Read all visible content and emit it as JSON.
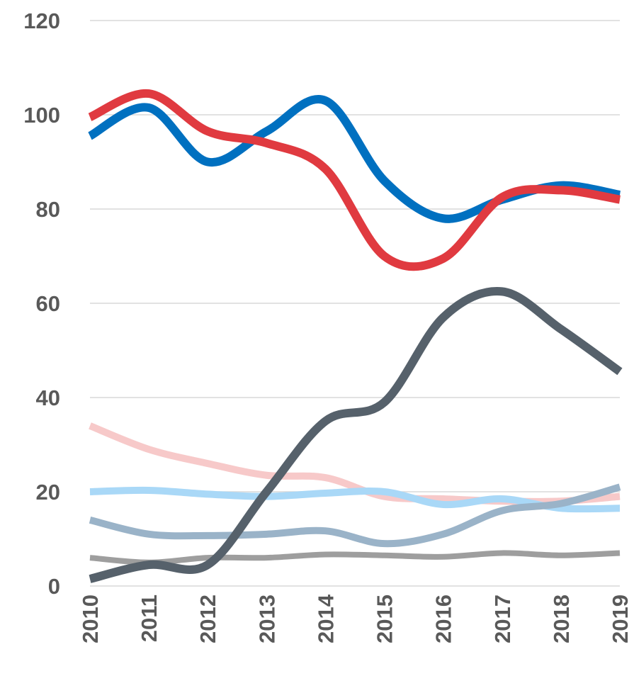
{
  "chart_data": {
    "type": "line",
    "categories": [
      "2010",
      "2011",
      "2012",
      "2013",
      "2014",
      "2015",
      "2016",
      "2017",
      "2018",
      "2019"
    ],
    "ylim": [
      0,
      120
    ],
    "yticks": [
      0,
      20,
      40,
      60,
      80,
      100,
      120
    ],
    "grid": true,
    "smooth": true,
    "series": [
      {
        "color": "#f7c9c9",
        "values": [
          34,
          29,
          26,
          23.5,
          23,
          19,
          18.5,
          18,
          18,
          19
        ]
      },
      {
        "color": "#a9d8f7",
        "values": [
          20,
          20.3,
          19.5,
          19,
          19.7,
          20,
          17.3,
          18.5,
          16.5,
          16.5
        ]
      },
      {
        "color": "#9ab3c8",
        "values": [
          14,
          11,
          10.7,
          11,
          11.7,
          9,
          11,
          16,
          17.5,
          21
        ]
      },
      {
        "color": "#9e9e9e",
        "values": [
          6,
          5,
          6,
          6,
          6.7,
          6.5,
          6.2,
          7,
          6.5,
          7
        ]
      },
      {
        "color": "#56616b",
        "values": [
          1.5,
          4.5,
          4.5,
          20,
          35,
          39,
          57,
          62.5,
          54.5,
          45.5
        ]
      },
      {
        "color": "#0070c0",
        "values": [
          95.5,
          101.5,
          90,
          96.5,
          103,
          86,
          78,
          82,
          85,
          83
        ]
      },
      {
        "color": "#e03a40",
        "values": [
          99.5,
          104.5,
          96.5,
          94,
          88.5,
          70,
          69.5,
          82.5,
          84,
          82
        ]
      }
    ]
  }
}
